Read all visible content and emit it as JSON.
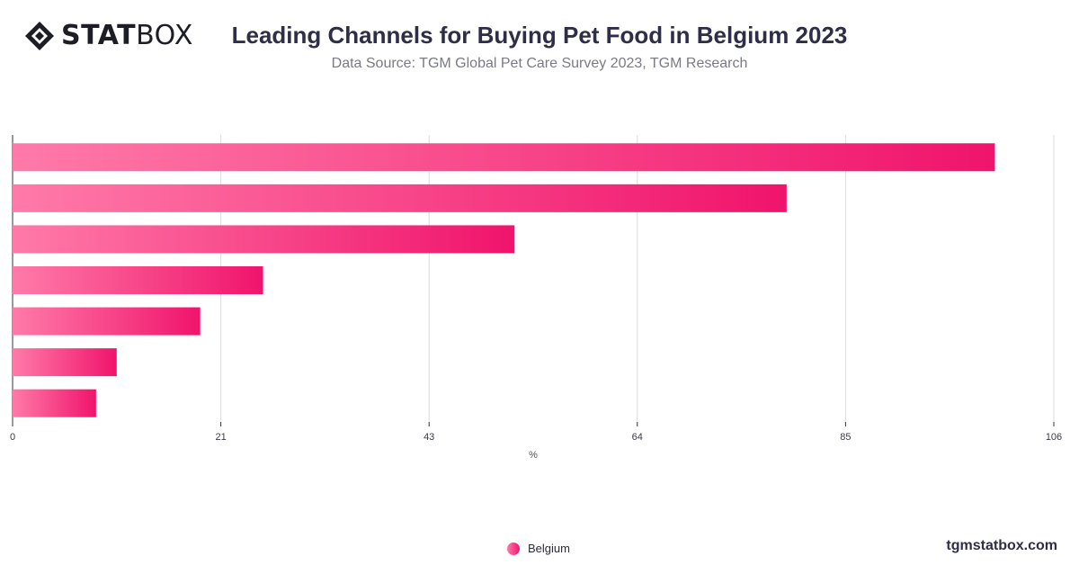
{
  "brand": {
    "logo_bold": "STAT",
    "logo_light": "BOX",
    "website": "tgmstatbox.com"
  },
  "colors": {
    "bar_start": "#ff7aa8",
    "bar_end": "#f0146c",
    "grid": "#dcdcdc",
    "axis": "#333333"
  },
  "chart_data": {
    "type": "bar",
    "orientation": "horizontal",
    "title": "Leading Channels for Buying Pet Food in Belgium 2023",
    "subtitle": "Data Source: TGM Global Pet Care Survey 2023, TGM Research",
    "xlabel": "%",
    "ylabel": "",
    "xlim": [
      0,
      106
    ],
    "x_ticks": [
      "0",
      "21",
      "43",
      "64",
      "85",
      "106"
    ],
    "x_tick_values": [
      0,
      21.2,
      42.4,
      63.6,
      84.8,
      106
    ],
    "categories": [
      "",
      "",
      "",
      "",
      "",
      "",
      ""
    ],
    "series": [
      {
        "name": "Belgium",
        "values": [
          100,
          78.8,
          51.1,
          25.5,
          19.1,
          10.6,
          8.5
        ]
      }
    ],
    "grid": true,
    "legend_position": "bottom-center"
  }
}
